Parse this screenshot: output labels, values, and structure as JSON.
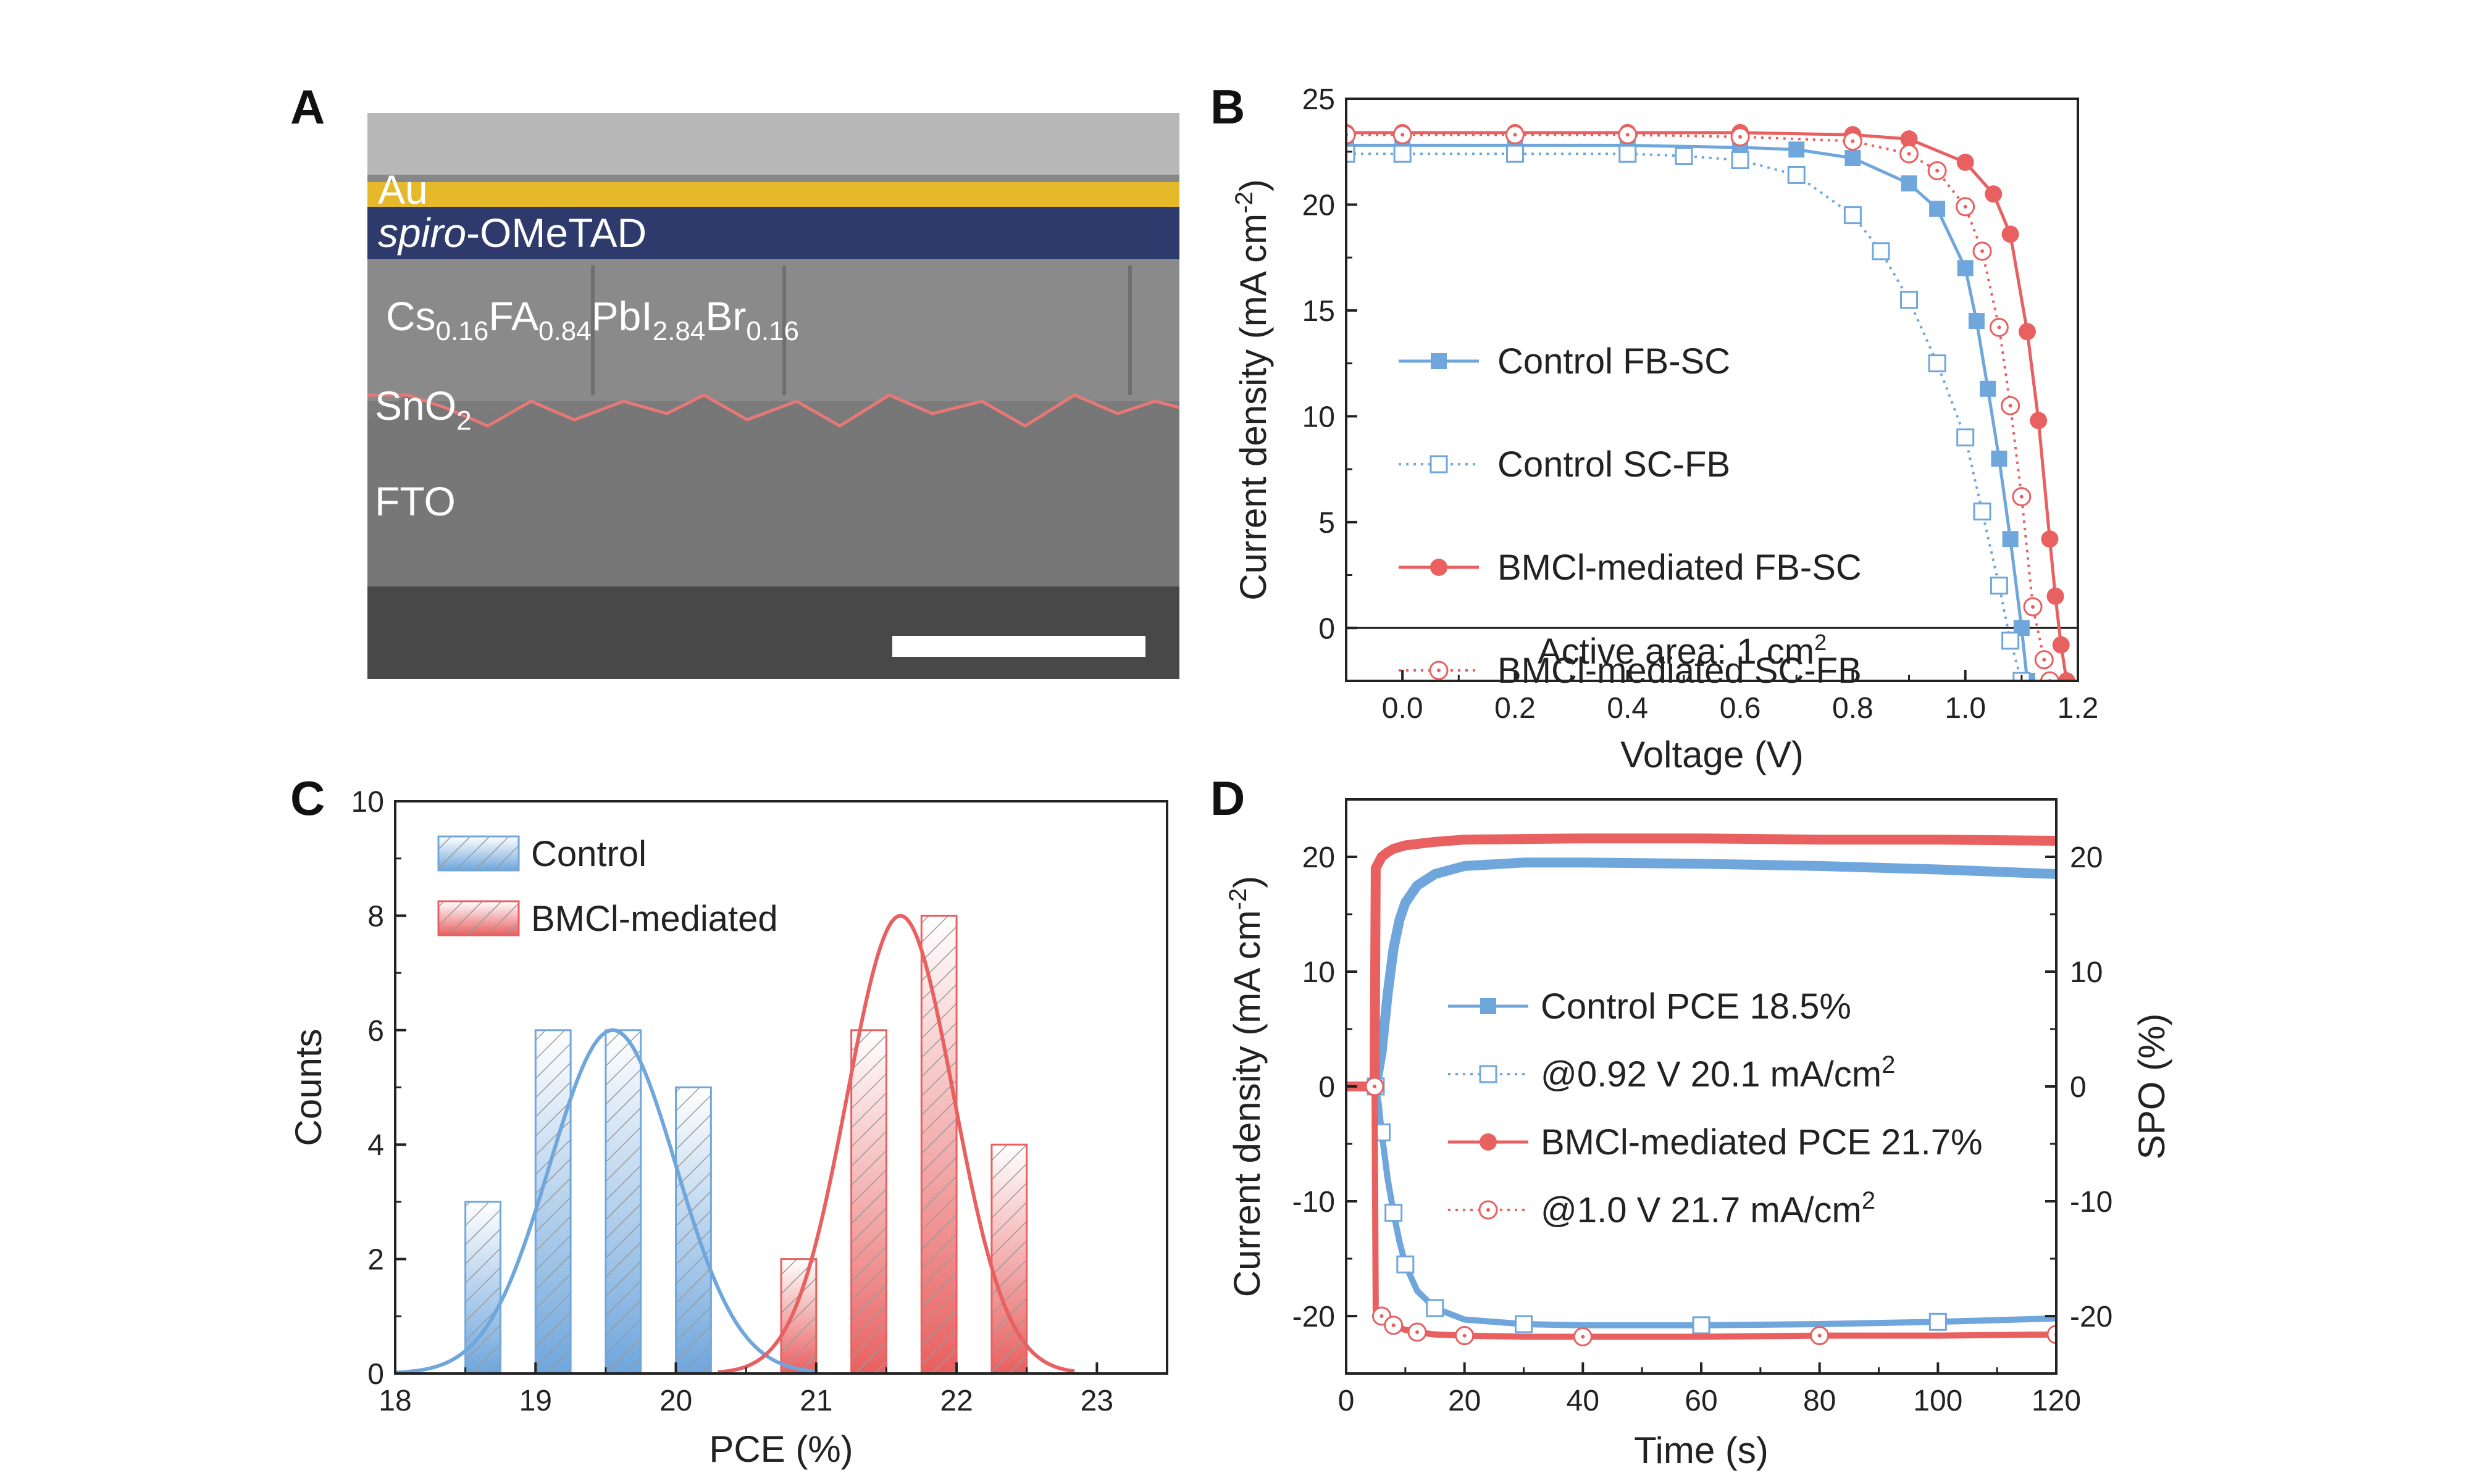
{
  "colors": {
    "control": "#6fa6dc",
    "bmcl": "#e86060",
    "text": "#222222"
  },
  "panels": {
    "A": {
      "letter": "A",
      "layers": {
        "au": "Au",
        "spiro_italic": "spiro",
        "spiro_rest": "-OMeTAD",
        "fto": "FTO"
      },
      "perovskite": {
        "cs": "Cs",
        "cs_sub": "0.16",
        "fa": "FA",
        "fa_sub": "0.84",
        "pbi": "PbI",
        "pbi_sub": "2.84",
        "br": "Br",
        "br_sub": "0.16"
      },
      "sno2": {
        "base": "SnO",
        "sub": "2"
      }
    },
    "B": {
      "letter": "B",
      "annotation": {
        "text": "Active area: 1 cm",
        "sup": "2"
      }
    },
    "C": {
      "letter": "C"
    },
    "D": {
      "letter": "D"
    }
  },
  "chart_data": [
    {
      "panel": "B",
      "type": "line",
      "xlabel": "Voltage (V)",
      "ylabel": {
        "text": "Current density (mA cm",
        "sup": "-2",
        "close": ")"
      },
      "xlim": [
        -0.1,
        1.2
      ],
      "ylim": [
        -2.5,
        25
      ],
      "xticks": [
        "0.0",
        "0.2",
        "0.4",
        "0.6",
        "0.8",
        "1.0",
        "1.2"
      ],
      "yticks": [
        "0",
        "5",
        "10",
        "15",
        "20",
        "25"
      ],
      "legend_position": "center-left",
      "series": [
        {
          "name": "Control FB-SC",
          "color": "#6fa6dc",
          "marker": "square-filled",
          "dash": false,
          "x": [
            -0.1,
            0.0,
            0.2,
            0.4,
            0.6,
            0.7,
            0.8,
            0.9,
            0.95,
            1.0,
            1.02,
            1.04,
            1.06,
            1.08,
            1.1,
            1.11
          ],
          "y": [
            22.8,
            22.8,
            22.8,
            22.8,
            22.7,
            22.6,
            22.2,
            21.0,
            19.8,
            17.0,
            14.5,
            11.3,
            8.0,
            4.2,
            0.0,
            -2.5
          ]
        },
        {
          "name": "Control SC-FB",
          "color": "#6fa6dc",
          "marker": "square-open",
          "dash": true,
          "x": [
            -0.1,
            0.0,
            0.2,
            0.4,
            0.5,
            0.6,
            0.7,
            0.8,
            0.85,
            0.9,
            0.95,
            1.0,
            1.03,
            1.06,
            1.08,
            1.1
          ],
          "y": [
            22.4,
            22.4,
            22.4,
            22.4,
            22.3,
            22.1,
            21.4,
            19.5,
            17.8,
            15.5,
            12.5,
            9.0,
            5.5,
            2.0,
            -0.6,
            -2.5
          ]
        },
        {
          "name": "BMCl-mediated FB-SC",
          "color": "#e86060",
          "marker": "circle-filled",
          "dash": false,
          "x": [
            -0.1,
            0.0,
            0.2,
            0.4,
            0.6,
            0.8,
            0.9,
            1.0,
            1.05,
            1.08,
            1.11,
            1.13,
            1.15,
            1.16,
            1.17,
            1.18
          ],
          "y": [
            23.4,
            23.4,
            23.4,
            23.4,
            23.4,
            23.3,
            23.1,
            22.0,
            20.5,
            18.6,
            14.0,
            9.8,
            4.2,
            1.5,
            -0.8,
            -2.5
          ]
        },
        {
          "name": "BMCl-mediated SC-FB",
          "color": "#e86060",
          "marker": "circle-open",
          "dash": true,
          "x": [
            -0.1,
            0.0,
            0.2,
            0.4,
            0.6,
            0.8,
            0.9,
            0.95,
            1.0,
            1.03,
            1.06,
            1.08,
            1.1,
            1.12,
            1.14,
            1.15
          ],
          "y": [
            23.3,
            23.3,
            23.3,
            23.3,
            23.2,
            23.0,
            22.4,
            21.6,
            19.9,
            17.8,
            14.2,
            10.5,
            6.2,
            1.0,
            -1.5,
            -2.5
          ]
        }
      ]
    },
    {
      "panel": "C",
      "type": "bar",
      "xlabel": "PCE (%)",
      "ylabel": "Counts",
      "xlim": [
        18,
        23.5
      ],
      "ylim": [
        0,
        10
      ],
      "xticks": [
        "18",
        "19",
        "20",
        "21",
        "22",
        "23"
      ],
      "yticks": [
        "0",
        "2",
        "4",
        "6",
        "8",
        "10"
      ],
      "bar_width": 0.25,
      "legend_position": "top-left",
      "series": [
        {
          "name": "Control",
          "color": "#6fa6dc",
          "centers": [
            18.625,
            19.125,
            19.625,
            20.125
          ],
          "values": [
            3,
            6,
            6,
            5
          ],
          "fit": {
            "mean": 19.55,
            "sigma": 0.45,
            "peak": 6.0,
            "range": [
              18.0,
              21.0
            ]
          }
        },
        {
          "name": "BMCl-mediated",
          "color": "#e86060",
          "centers": [
            20.875,
            21.375,
            21.875,
            22.375
          ],
          "values": [
            2,
            6,
            8,
            4
          ],
          "fit": {
            "mean": 21.6,
            "sigma": 0.38,
            "peak": 8.0,
            "range": [
              20.3,
              22.85
            ]
          }
        }
      ]
    },
    {
      "panel": "D",
      "type": "line",
      "xlabel": "Time (s)",
      "ylabel": {
        "text": "Current density (mA cm",
        "sup": "-2",
        "close": ")"
      },
      "y2label": "SPO (%)",
      "xlim": [
        0,
        120
      ],
      "ylim": [
        -25,
        25
      ],
      "y2lim": [
        -25,
        25
      ],
      "xticks": [
        "0",
        "20",
        "40",
        "60",
        "80",
        "100",
        "120"
      ],
      "yticks": [
        "-20",
        "-10",
        "0",
        "10",
        "20"
      ],
      "y2ticks": [
        "-20",
        "-10",
        "0",
        "10",
        "20"
      ],
      "legend_position": "center",
      "series": [
        {
          "name": "Control PCE 18.5%",
          "color": "#6fa6dc",
          "marker": "square-filled",
          "dash": false,
          "x": [
            0,
            5,
            6,
            7,
            8,
            9,
            10,
            12,
            15,
            20,
            30,
            40,
            60,
            80,
            100,
            120
          ],
          "y": [
            0,
            0,
            3,
            8,
            12,
            14.5,
            16.0,
            17.5,
            18.5,
            19.2,
            19.5,
            19.5,
            19.4,
            19.2,
            18.9,
            18.5
          ]
        },
        {
          "name": "@0.92 V 20.1 mA/cm",
          "name_sup": "2",
          "color": "#6fa6dc",
          "marker": "square-open",
          "dash": true,
          "x": [
            0,
            5,
            5.5,
            6,
            7,
            8,
            9,
            10,
            12,
            15,
            20,
            30,
            40,
            60,
            80,
            100,
            120
          ],
          "y": [
            0,
            0,
            -1.5,
            -4,
            -8,
            -11,
            -13.5,
            -15.5,
            -17.8,
            -19.3,
            -20.3,
            -20.7,
            -20.8,
            -20.8,
            -20.7,
            -20.5,
            -20.2
          ]
        },
        {
          "name": "BMCl-mediated PCE 21.7%",
          "color": "#e86060",
          "marker": "circle-filled",
          "dash": false,
          "x": [
            0,
            4.8,
            5,
            5.5,
            6,
            7,
            8,
            10,
            15,
            20,
            40,
            60,
            80,
            100,
            120
          ],
          "y": [
            0,
            0,
            19.0,
            19.5,
            20.0,
            20.4,
            20.7,
            21.0,
            21.3,
            21.5,
            21.6,
            21.6,
            21.5,
            21.5,
            21.4
          ]
        },
        {
          "name": "@1.0 V 21.7 mA/cm",
          "name_sup": "2",
          "color": "#e86060",
          "marker": "circle-open",
          "dash": true,
          "x": [
            0,
            4.8,
            5,
            6,
            7,
            8,
            10,
            12,
            15,
            20,
            30,
            40,
            60,
            80,
            100,
            120
          ],
          "y": [
            0,
            0,
            -19.5,
            -20.0,
            -20.4,
            -20.8,
            -21.2,
            -21.4,
            -21.6,
            -21.7,
            -21.8,
            -21.8,
            -21.8,
            -21.7,
            -21.7,
            -21.6
          ]
        }
      ]
    }
  ]
}
